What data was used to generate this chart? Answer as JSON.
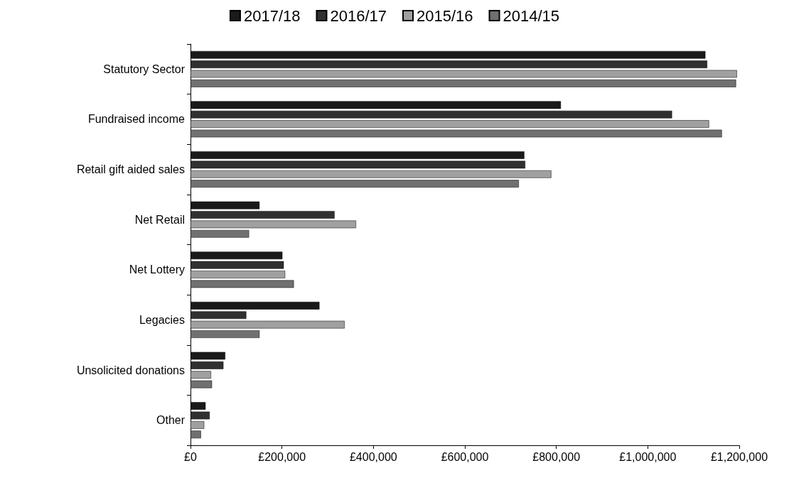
{
  "chart_data": {
    "type": "bar",
    "orientation": "horizontal",
    "categories": [
      "Statutory Sector",
      "Fundraised income",
      "Retail gift aided sales",
      "Net Retail",
      "Net Lottery",
      "Legacies",
      "Unsolicited donations",
      "Other"
    ],
    "series": [
      {
        "name": "2017/18",
        "color": "#1a1a1a",
        "values": [
          1126000,
          810000,
          730000,
          151000,
          201000,
          282000,
          76000,
          33000
        ]
      },
      {
        "name": "2016/17",
        "color": "#303030",
        "values": [
          1130000,
          1053000,
          732000,
          315000,
          204000,
          122000,
          72000,
          42000
        ]
      },
      {
        "name": "2015/16",
        "color": "#a0a0a0",
        "values": [
          1195000,
          1134000,
          789000,
          362000,
          207000,
          337000,
          45000,
          30000
        ]
      },
      {
        "name": "2014/15",
        "color": "#707070",
        "values": [
          1193000,
          1162000,
          718000,
          128000,
          226000,
          151000,
          47000,
          23000
        ]
      }
    ],
    "xlim": [
      0,
      1200000
    ],
    "xticks": [
      {
        "value": 0,
        "label": "£0"
      },
      {
        "value": 200000,
        "label": "£200,000"
      },
      {
        "value": 400000,
        "label": "£400,000"
      },
      {
        "value": 600000,
        "label": "£600,000"
      },
      {
        "value": 800000,
        "label": "£800,000"
      },
      {
        "value": 1000000,
        "label": "£1,000,000"
      },
      {
        "value": 1200000,
        "label": "£1,200,000"
      }
    ],
    "legend": "top",
    "grid": false
  }
}
